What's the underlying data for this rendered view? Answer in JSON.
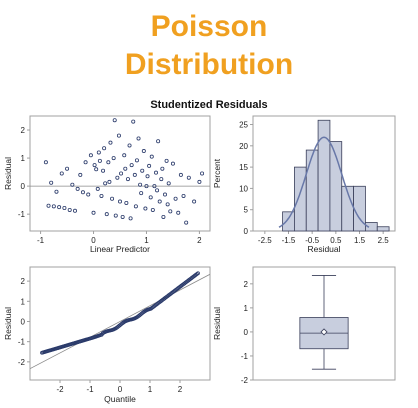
{
  "header": {
    "title_line1": "Poisson",
    "title_line2": "Distribution",
    "title_color": "#f0a020"
  },
  "figure_title": "Studentized Residuals",
  "colors": {
    "frame": "#a0a0a0",
    "axis_text": "#222222",
    "marker": "#2a3a6a",
    "bar_fill": "#c8cede",
    "bar_edge": "#3a3f5a",
    "curve": "#6878a8",
    "ref_line": "#8a8a8a"
  },
  "chart_data": [
    {
      "type": "scatter",
      "xlabel": "Linear Predictor",
      "ylabel": "Residual",
      "xlim": [
        -1.2,
        2.2
      ],
      "ylim": [
        -1.6,
        2.5
      ],
      "xticks": [
        -1,
        0,
        1,
        2
      ],
      "yticks": [
        -1,
        0,
        1,
        2
      ],
      "ref_y": 0,
      "points": [
        [
          -0.9,
          0.85
        ],
        [
          -0.85,
          -0.7
        ],
        [
          -0.8,
          0.12
        ],
        [
          -0.75,
          -0.72
        ],
        [
          -0.7,
          -0.2
        ],
        [
          -0.65,
          -0.75
        ],
        [
          -0.6,
          0.45
        ],
        [
          -0.55,
          -0.78
        ],
        [
          -0.5,
          0.62
        ],
        [
          -0.45,
          -0.85
        ],
        [
          -0.4,
          0.05
        ],
        [
          -0.35,
          -0.88
        ],
        [
          -0.3,
          -0.1
        ],
        [
          -0.25,
          0.4
        ],
        [
          -0.2,
          -0.22
        ],
        [
          -0.15,
          0.85
        ],
        [
          -0.1,
          -0.3
        ],
        [
          -0.05,
          1.1
        ],
        [
          0.0,
          -0.95
        ],
        [
          0.02,
          0.75
        ],
        [
          0.05,
          0.6
        ],
        [
          0.08,
          -0.1
        ],
        [
          0.1,
          1.2
        ],
        [
          0.12,
          0.9
        ],
        [
          0.15,
          -0.35
        ],
        [
          0.18,
          0.55
        ],
        [
          0.2,
          1.35
        ],
        [
          0.22,
          0.1
        ],
        [
          0.25,
          -1.0
        ],
        [
          0.28,
          0.85
        ],
        [
          0.3,
          0.15
        ],
        [
          0.32,
          1.55
        ],
        [
          0.35,
          -0.45
        ],
        [
          0.38,
          1.0
        ],
        [
          0.4,
          2.35
        ],
        [
          0.42,
          -1.05
        ],
        [
          0.45,
          0.3
        ],
        [
          0.48,
          1.8
        ],
        [
          0.5,
          -0.55
        ],
        [
          0.52,
          0.45
        ],
        [
          0.55,
          -1.1
        ],
        [
          0.58,
          1.1
        ],
        [
          0.6,
          0.62
        ],
        [
          0.62,
          -0.6
        ],
        [
          0.65,
          0.25
        ],
        [
          0.68,
          1.45
        ],
        [
          0.7,
          -1.15
        ],
        [
          0.72,
          0.75
        ],
        [
          0.75,
          2.3
        ],
        [
          0.78,
          0.4
        ],
        [
          0.8,
          -0.72
        ],
        [
          0.82,
          0.92
        ],
        [
          0.85,
          1.7
        ],
        [
          0.88,
          0.05
        ],
        [
          0.9,
          -0.25
        ],
        [
          0.92,
          0.55
        ],
        [
          0.95,
          1.25
        ],
        [
          0.98,
          -0.8
        ],
        [
          1.0,
          0.0
        ],
        [
          1.02,
          0.35
        ],
        [
          1.05,
          0.72
        ],
        [
          1.08,
          -0.4
        ],
        [
          1.1,
          1.05
        ],
        [
          1.12,
          -0.85
        ],
        [
          1.15,
          0.0
        ],
        [
          1.18,
          0.48
        ],
        [
          1.2,
          -0.15
        ],
        [
          1.22,
          1.6
        ],
        [
          1.25,
          -0.55
        ],
        [
          1.28,
          0.25
        ],
        [
          1.3,
          0.62
        ],
        [
          1.32,
          -1.1
        ],
        [
          1.35,
          -0.3
        ],
        [
          1.38,
          0.9
        ],
        [
          1.4,
          -0.65
        ],
        [
          1.42,
          0.1
        ],
        [
          1.45,
          -0.9
        ],
        [
          1.5,
          0.8
        ],
        [
          1.55,
          -0.45
        ],
        [
          1.6,
          -0.95
        ],
        [
          1.65,
          0.4
        ],
        [
          1.7,
          -0.35
        ],
        [
          1.75,
          -1.3
        ],
        [
          1.8,
          0.3
        ],
        [
          1.9,
          -0.55
        ],
        [
          2.0,
          0.15
        ],
        [
          2.05,
          0.45
        ]
      ]
    },
    {
      "type": "bar",
      "subtype": "histogram",
      "xlabel": "Residual",
      "ylabel": "Percent",
      "xlim": [
        -3.0,
        3.0
      ],
      "ylim": [
        0,
        27
      ],
      "xticks": [
        -2.5,
        -1.5,
        -0.5,
        0.5,
        1.5,
        2.5
      ],
      "xtick_labels": [
        "-2.5",
        "-1.5",
        "-0.5",
        "0.5",
        "1.5",
        "2.5"
      ],
      "yticks": [
        0,
        5,
        10,
        15,
        20,
        25
      ],
      "bin_edges": [
        -1.75,
        -1.25,
        -0.75,
        -0.25,
        0.25,
        0.75,
        1.25,
        1.75,
        2.25,
        2.75
      ],
      "values": [
        4.5,
        15.0,
        19.0,
        26.0,
        21.0,
        10.5,
        10.5,
        2.0,
        1.0
      ],
      "curve": {
        "type": "normal",
        "mean": 0.0,
        "sd": 0.75,
        "scale": 22.0
      }
    },
    {
      "type": "scatter",
      "subtype": "qq",
      "xlabel": "Quantile",
      "ylabel": "Residual",
      "xlim": [
        -3.0,
        3.0
      ],
      "ylim": [
        -2.9,
        2.7
      ],
      "xticks": [
        -2,
        -1,
        0,
        1,
        2
      ],
      "yticks": [
        -2,
        -1,
        0,
        1,
        2
      ],
      "ref_line": {
        "intercept": 0.0,
        "slope": 0.78
      },
      "n_points": 150,
      "quantile_range": [
        -2.6,
        2.6
      ],
      "residual_range": [
        -1.55,
        2.4
      ]
    },
    {
      "type": "box",
      "ylabel": "Residual",
      "ylim": [
        -2.0,
        2.7
      ],
      "yticks": [
        -2,
        -1,
        0,
        1,
        2
      ],
      "whisker_low": -1.55,
      "q1": -0.7,
      "median": -0.05,
      "mean": 0.0,
      "q3": 0.6,
      "whisker_high": 2.35
    }
  ]
}
